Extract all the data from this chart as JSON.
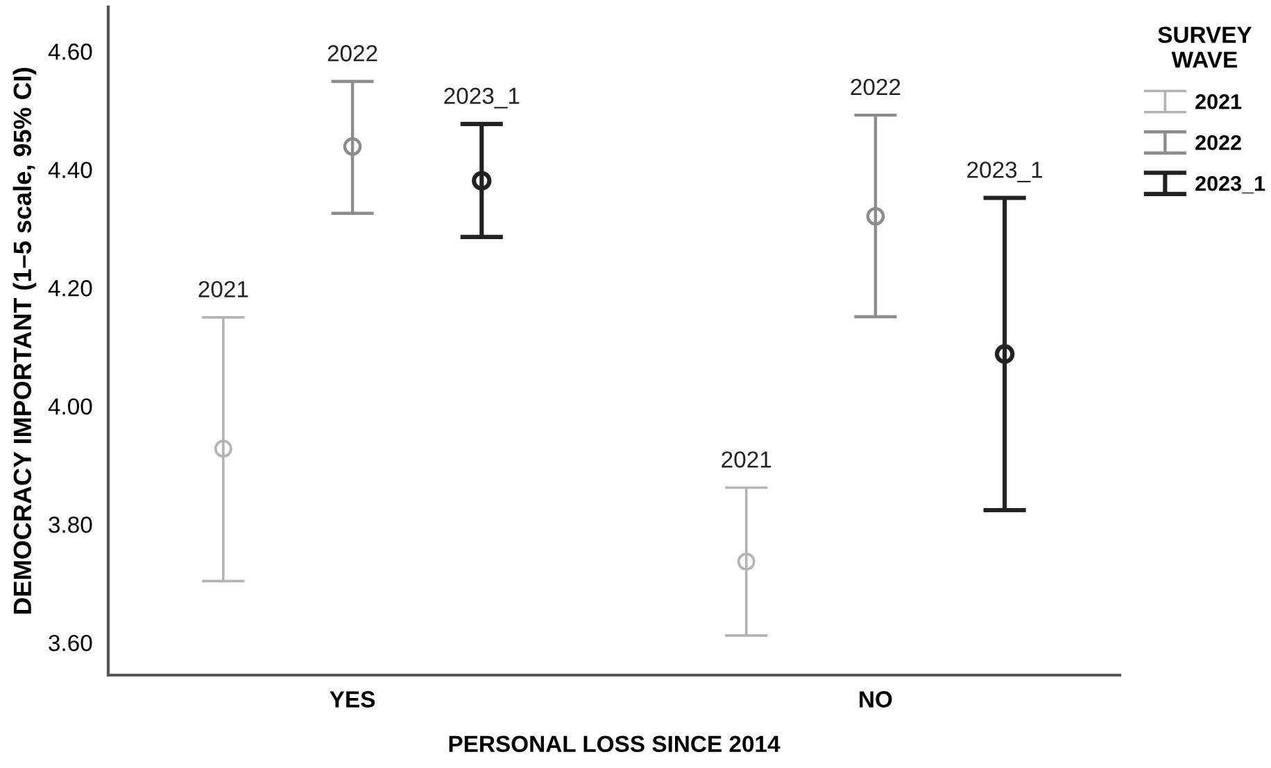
{
  "chart_data": {
    "type": "scatter",
    "xlabel": "PERSONAL LOSS SINCE 2014",
    "ylabel": "DEMOCRACY IMPORTANT (1–5 scale, 95% CI)",
    "legend_title": "SURVEY\nWAVE",
    "categories": [
      "YES",
      "NO"
    ],
    "ylim": [
      3.545,
      4.675
    ],
    "yticks": [
      {
        "value": 3.6,
        "label": "3.60"
      },
      {
        "value": 3.8,
        "label": "3.80"
      },
      {
        "value": 4.0,
        "label": "4.00"
      },
      {
        "value": 4.2,
        "label": "4.20"
      },
      {
        "value": 4.4,
        "label": "4.40"
      },
      {
        "value": 4.6,
        "label": "4.60"
      }
    ],
    "marker": "circle",
    "grid": false,
    "legend": "right",
    "series": [
      {
        "name": "2021",
        "color": "#b3b3b3",
        "values": [
          3.928,
          3.737
        ],
        "errors": [
          [
            3.704,
            4.15
          ],
          [
            3.612,
            3.862
          ]
        ]
      },
      {
        "name": "2022",
        "color": "#8c8c8c",
        "values": [
          4.439,
          4.321
        ],
        "errors": [
          [
            4.326,
            4.549
          ],
          [
            4.151,
            4.492
          ]
        ]
      },
      {
        "name": "2023_1",
        "color": "#222222",
        "values": [
          4.381,
          4.088
        ],
        "errors": [
          [
            4.286,
            4.477
          ],
          [
            3.824,
            4.352
          ]
        ]
      }
    ]
  }
}
